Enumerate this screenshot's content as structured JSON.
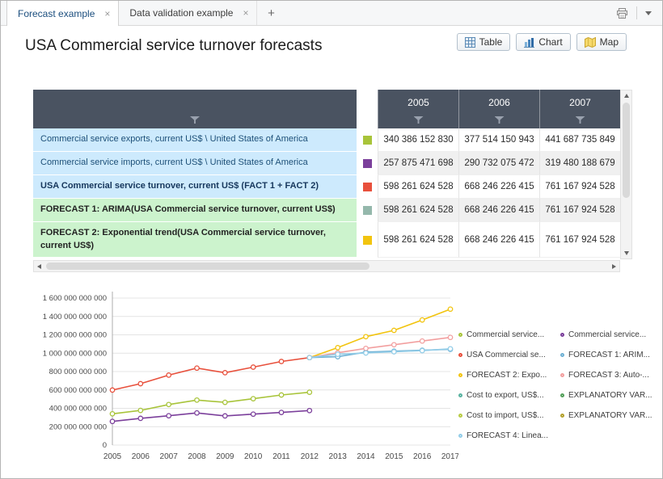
{
  "window": {
    "tabs": [
      {
        "label": "Forecast example",
        "close_label": "×",
        "active": true
      },
      {
        "label": "Data validation example",
        "close_label": "×",
        "active": false
      }
    ],
    "new_tab_label": "+"
  },
  "toolbar": {
    "title": "USA Commercial service turnover forecasts",
    "view_buttons": [
      {
        "label": "Table"
      },
      {
        "label": "Chart"
      },
      {
        "label": "Map"
      }
    ]
  },
  "table": {
    "header_bg": "#4a5361",
    "year_columns": [
      "2005",
      "2006",
      "2007"
    ],
    "rows": [
      {
        "label": "Commercial service exports, current US$ \\ United States of America",
        "bold": false,
        "label_bg": "#cdeafd",
        "label_color": "#1d5078",
        "swatch_color": "#a8c43a",
        "values": [
          "340 386 152 830",
          "377 514 150 943",
          "441 687 735 849"
        ]
      },
      {
        "label": "Commercial service imports, current US$ \\ United States of America",
        "bold": false,
        "label_bg": "#cdeafd",
        "label_color": "#1d5078",
        "swatch_color": "#7b3f9b",
        "values": [
          "257 875 471 698",
          "290 732 075 472",
          "319 480 188 679"
        ]
      },
      {
        "label": "USA Commercial service turnover, current US$ (FACT 1 + FACT 2)",
        "bold": true,
        "label_bg": "#cdeafd",
        "label_color": "#16375c",
        "swatch_color": "#e8503c",
        "values": [
          "598 261 624 528",
          "668 246 226 415",
          "761 167 924 528"
        ]
      },
      {
        "label": "FORECAST 1: ARIMA(USA Commercial service turnover, current US$)",
        "bold": true,
        "label_bg": "#ccf3cd",
        "label_color": "#222222",
        "swatch_color": "#95b8ac",
        "values": [
          "598 261 624 528",
          "668 246 226 415",
          "761 167 924 528"
        ]
      },
      {
        "label": "FORECAST 2: Exponential trend(USA Commercial service turnover, current US$)",
        "bold": true,
        "label_bg": "#ccf3cd",
        "label_color": "#222222",
        "swatch_color": "#f2c40f",
        "values": [
          "598 261 624 528",
          "668 246 226 415",
          "761 167 924 528"
        ]
      }
    ]
  },
  "chart_data": {
    "type": "line",
    "x": [
      2005,
      2006,
      2007,
      2008,
      2009,
      2010,
      2011,
      2012,
      2013,
      2014,
      2015,
      2016,
      2017
    ],
    "y_unit": "US$",
    "ylim_billions": [
      0,
      1600
    ],
    "ytick_labels": [
      "0",
      "200 000 000 000",
      "400 000 000 000",
      "600 000 000 000",
      "800 000 000 000",
      "1 000 000 000 000",
      "1 200 000 000 000",
      "1 400 000 000 000",
      "1 600 000 000 000"
    ],
    "grid": true,
    "series": [
      {
        "name": "Commercial service exports, current US$ \\ United States of America",
        "color": "#a8c43a",
        "values_billions": [
          340.4,
          377.5,
          441.7,
          490,
          465,
          505,
          545,
          575,
          null,
          null,
          null,
          null,
          null
        ]
      },
      {
        "name": "Commercial service imports, current US$ \\ United States of America",
        "color": "#7b3f9b",
        "values_billions": [
          257.9,
          290.7,
          319.5,
          350,
          317,
          337,
          355,
          375,
          null,
          null,
          null,
          null,
          null
        ]
      },
      {
        "name": "USA Commercial service turnover, current US$ (FACT 1 + FACT 2)",
        "color": "#e8503c",
        "values_billions": [
          598.3,
          668.2,
          761.2,
          838,
          788,
          848,
          910,
          952,
          null,
          null,
          null,
          null,
          null
        ]
      },
      {
        "name": "FORECAST 1: ARIMA(USA Commercial service turnover, current US$)",
        "color": "#6fb1d4",
        "values_billions": [
          null,
          null,
          null,
          null,
          null,
          null,
          null,
          952,
          962,
          1012,
          1022,
          1032,
          1042
        ]
      },
      {
        "name": "FORECAST 2: Exponential trend(USA Commercial service turnover, current US$)",
        "color": "#f2c40f",
        "values_billions": [
          null,
          null,
          null,
          null,
          null,
          null,
          null,
          952,
          1060,
          1180,
          1248,
          1362,
          1480
        ]
      },
      {
        "name": "FORECAST 3: Auto-...",
        "color": "#f29f9f",
        "values_billions": [
          null,
          null,
          null,
          null,
          null,
          null,
          null,
          952,
          1005,
          1052,
          1092,
          1132,
          1172
        ]
      },
      {
        "name": "FORECAST 4: Linea...",
        "color": "#93cde8",
        "values_billions": [
          null,
          null,
          null,
          null,
          null,
          null,
          null,
          952,
          988,
          1002,
          1015,
          1028,
          1048
        ]
      },
      {
        "name": "Cost to export, US$...",
        "color": "#58b2a0",
        "values_billions": []
      },
      {
        "name": "Cost to import, US$...",
        "color": "#b8cc44",
        "values_billions": []
      },
      {
        "name": "EXPLANATORY VAR...",
        "color": "#53a05a",
        "values_billions": []
      },
      {
        "name": "EXPLANATORY VAR...",
        "color": "#b3a02c",
        "values_billions": []
      }
    ],
    "legend": {
      "position": "right",
      "items": [
        {
          "label": "Commercial service...",
          "color": "#a8c43a"
        },
        {
          "label": "Commercial service...",
          "color": "#7b3f9b"
        },
        {
          "label": "USA Commercial se...",
          "color": "#e8503c"
        },
        {
          "label": "FORECAST 1: ARIM...",
          "color": "#6fb1d4"
        },
        {
          "label": "FORECAST 2: Expo...",
          "color": "#f2c40f"
        },
        {
          "label": "FORECAST 3: Auto-...",
          "color": "#f29f9f"
        },
        {
          "label": "Cost to export, US$...",
          "color": "#58b2a0"
        },
        {
          "label": "EXPLANATORY VAR...",
          "color": "#53a05a"
        },
        {
          "label": "Cost to import, US$...",
          "color": "#b8cc44"
        },
        {
          "label": "EXPLANATORY VAR...",
          "color": "#b3a02c"
        },
        {
          "label": "FORECAST 4: Linea...",
          "color": "#93cde8"
        }
      ]
    }
  }
}
